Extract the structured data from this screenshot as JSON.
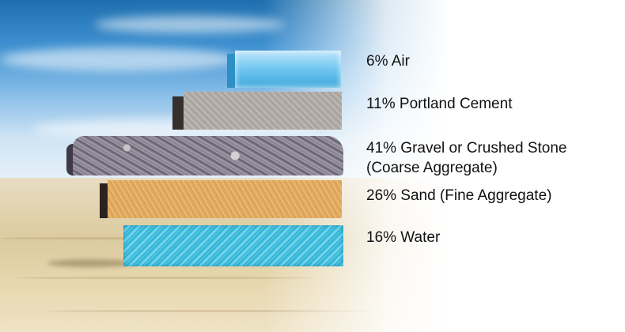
{
  "components": [
    {
      "id": "air",
      "label": "6% Air"
    },
    {
      "id": "cement",
      "label": "11% Portland Cement"
    },
    {
      "id": "gravel",
      "label": "41% Gravel or Crushed Stone",
      "sublabel": "(Coarse Aggregate)"
    },
    {
      "id": "sand",
      "label": "26% Sand (Fine Aggregate)"
    },
    {
      "id": "water",
      "label": "16% Water"
    }
  ],
  "colors": {
    "air": "#6fc6f0",
    "cement": "#b8b2ad",
    "gravel": "#7b7584",
    "sand": "#e6b368",
    "water": "#2bb0d4",
    "label_text": "#111111"
  }
}
